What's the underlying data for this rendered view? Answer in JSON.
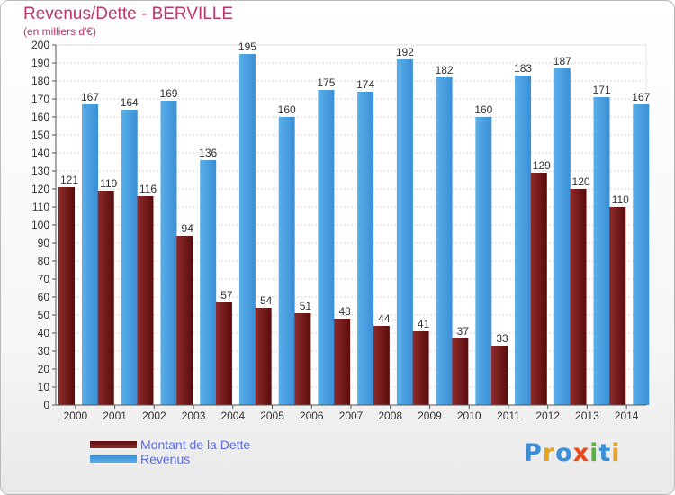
{
  "header": {
    "title": "Revenus/Dette - BERVILLE",
    "subtitle": "(en milliers d'€)"
  },
  "legend": {
    "items": [
      {
        "label": "Montant de la Dette",
        "color": "#7a1a1a"
      },
      {
        "label": "Revenus",
        "color": "#4a9fe0"
      }
    ]
  },
  "logo": {
    "letters": [
      {
        "ch": "P",
        "color": "#3a8fd8"
      },
      {
        "ch": "r",
        "color": "#e8a020"
      },
      {
        "ch": "o",
        "color": "#3a8fd8"
      },
      {
        "ch": "x",
        "color": "#e84a20"
      },
      {
        "ch": "i",
        "color": "#5ab040"
      },
      {
        "ch": "t",
        "color": "#3a8fd8"
      },
      {
        "ch": "i",
        "color": "#e8a020"
      }
    ]
  },
  "chart_data": {
    "type": "bar",
    "title": "Revenus/Dette - BERVILLE",
    "ylabel": "(en milliers d'€)",
    "categories": [
      "2000",
      "2001",
      "2002",
      "2003",
      "2004",
      "2005",
      "2006",
      "2007",
      "2008",
      "2009",
      "2010",
      "2011",
      "2012",
      "2013",
      "2014"
    ],
    "series": [
      {
        "name": "Montant de la Dette",
        "color": "#7a1a1a",
        "values": [
          121,
          119,
          116,
          94,
          57,
          54,
          51,
          48,
          44,
          41,
          37,
          33,
          129,
          120,
          110
        ],
        "labels": [
          "121",
          "119",
          "116",
          "94",
          "57",
          "54",
          "51",
          "48",
          "44",
          "41",
          "37",
          "33",
          "129",
          "120",
          "110"
        ]
      },
      {
        "name": "Revenus",
        "color": "#4a9fe0",
        "values": [
          167,
          164,
          169,
          136,
          195,
          160,
          175,
          174,
          192,
          182,
          160,
          183,
          187,
          171,
          167
        ],
        "labels": [
          "167",
          "164",
          "169",
          "136",
          "195",
          "160",
          "175",
          "174",
          "192",
          "182",
          "160",
          "183",
          "187",
          "171",
          "167"
        ]
      }
    ],
    "ylim": [
      0,
      200
    ],
    "ytick_step": 10,
    "yticks": [
      "0",
      "10",
      "20",
      "30",
      "40",
      "50",
      "60",
      "70",
      "80",
      "90",
      "100",
      "110",
      "120",
      "130",
      "140",
      "150",
      "160",
      "170",
      "180",
      "190",
      "200"
    ],
    "grid": true,
    "legend_position": "bottom-left"
  }
}
